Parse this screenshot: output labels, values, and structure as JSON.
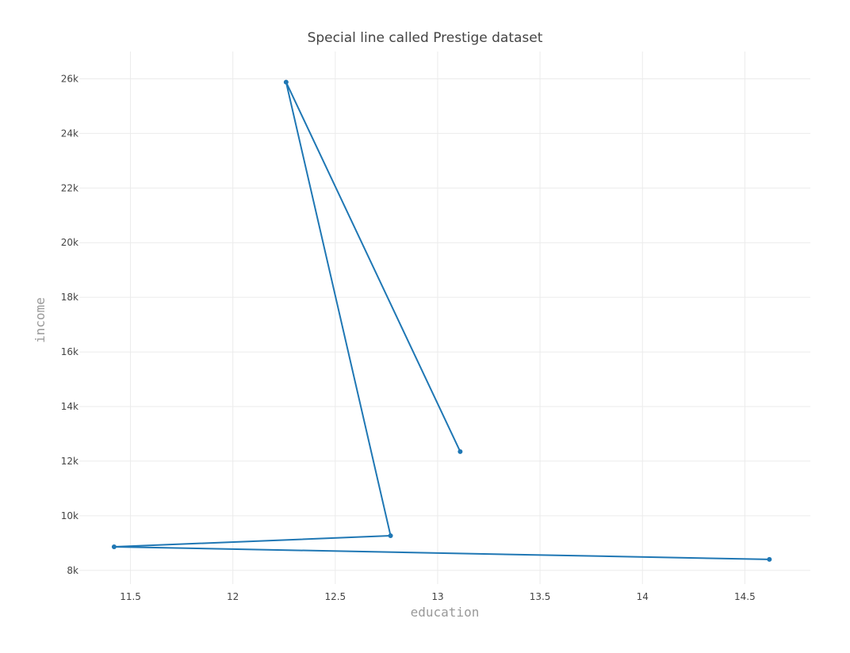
{
  "chart_data": {
    "type": "line",
    "title": "Special line called Prestige dataset",
    "xlabel": "education",
    "ylabel": "income",
    "xlim": [
      11.25,
      14.82
    ],
    "ylim": [
      7500,
      27000
    ],
    "x_ticks": [
      11.5,
      12,
      12.5,
      13,
      13.5,
      14,
      14.5
    ],
    "x_tick_labels": [
      "11.5",
      "12",
      "12.5",
      "13",
      "13.5",
      "14",
      "14.5"
    ],
    "y_ticks": [
      8000,
      10000,
      12000,
      14000,
      16000,
      18000,
      20000,
      22000,
      24000,
      26000
    ],
    "y_tick_labels": [
      "8k",
      "10k",
      "12k",
      "14k",
      "16k",
      "18k",
      "20k",
      "22k",
      "24k",
      "26k"
    ],
    "grid": true,
    "series": [
      {
        "color": "#1f77b4",
        "points": [
          {
            "x": 13.11,
            "y": 12351
          },
          {
            "x": 12.26,
            "y": 25879
          },
          {
            "x": 12.77,
            "y": 9271
          },
          {
            "x": 11.42,
            "y": 8865
          },
          {
            "x": 14.62,
            "y": 8403
          }
        ]
      }
    ]
  }
}
